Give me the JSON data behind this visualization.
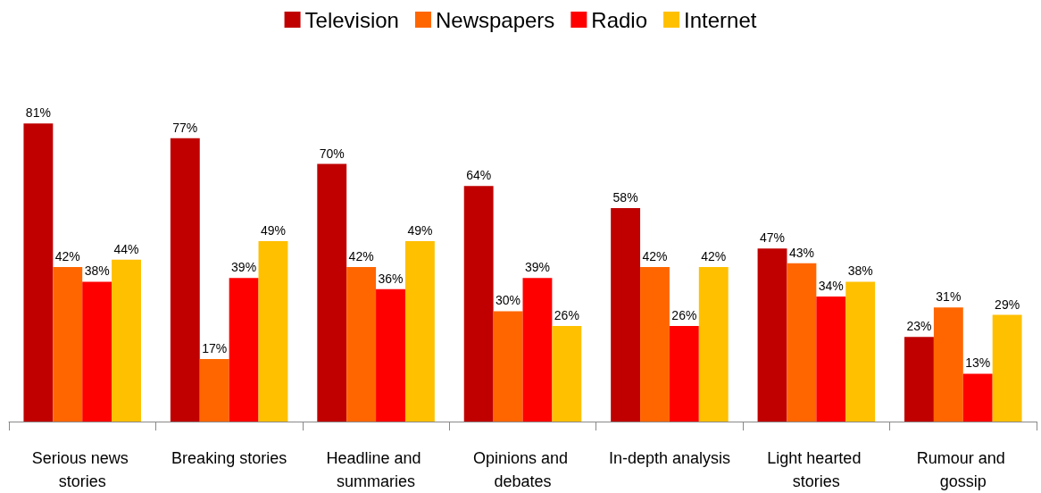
{
  "chart_data": {
    "type": "bar",
    "categories": [
      "Serious news stories",
      "Breaking stories",
      "Headline and summaries",
      "Opinions and debates",
      "In-depth analysis",
      "Light hearted stories",
      "Rumour and gossip"
    ],
    "series": [
      {
        "name": "Television",
        "color": "#c00000",
        "values": [
          81,
          77,
          70,
          64,
          58,
          47,
          23
        ],
        "value_labels": [
          "81%",
          "77%",
          "70%",
          "64%",
          "58%",
          "47%",
          "23%"
        ]
      },
      {
        "name": "Newspapers",
        "color": "#ff6600",
        "values": [
          42,
          17,
          42,
          30,
          42,
          43,
          31
        ],
        "value_labels": [
          "42%",
          "17%",
          "42%",
          "30%",
          "42%",
          "43%",
          "31%"
        ]
      },
      {
        "name": "Radio",
        "color": "#ff0000",
        "values": [
          38,
          39,
          36,
          39,
          26,
          34,
          13
        ],
        "value_labels": [
          "38%",
          "39%",
          "36%",
          "39%",
          "26%",
          "34%",
          "13%"
        ]
      },
      {
        "name": "Internet",
        "color": "#ffc000",
        "values": [
          44,
          49,
          49,
          26,
          42,
          38,
          29
        ],
        "value_labels": [
          "44%",
          "49%",
          "49%",
          "26%",
          "42%",
          "38%",
          "29%"
        ]
      }
    ],
    "legend": "top"
  }
}
